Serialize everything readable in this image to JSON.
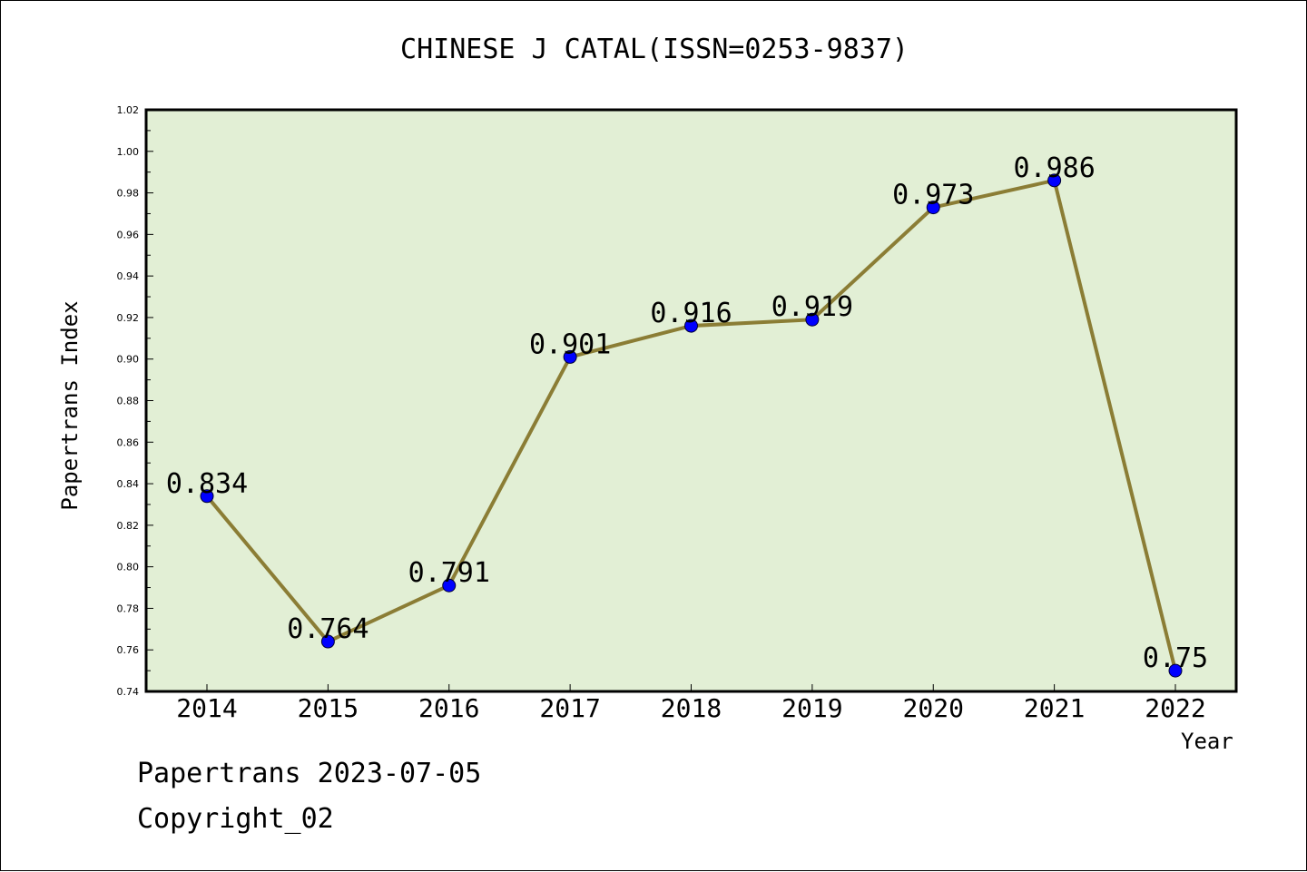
{
  "chart_data": {
    "type": "line",
    "title": "CHINESE J CATAL(ISSN=0253-9837)",
    "xlabel": "Year",
    "ylabel": "Papertrans Index",
    "categories": [
      "2014",
      "2015",
      "2016",
      "2017",
      "2018",
      "2019",
      "2020",
      "2021",
      "2022"
    ],
    "values": [
      0.834,
      0.764,
      0.791,
      0.901,
      0.916,
      0.919,
      0.973,
      0.986,
      0.75
    ],
    "data_labels": [
      "0.834",
      "0.764",
      "0.791",
      "0.901",
      "0.916",
      "0.919",
      "0.973",
      "0.986",
      "0.75"
    ],
    "ylim": [
      0.74,
      1.02
    ],
    "yticks": [
      "0.74",
      "0.76",
      "0.78",
      "0.80",
      "0.82",
      "0.84",
      "0.86",
      "0.88",
      "0.90",
      "0.92",
      "0.94",
      "0.96",
      "0.98",
      "1.00",
      "1.02"
    ],
    "grid": false,
    "colors": {
      "plot_background": "#e2efd5",
      "line": "#8b7d35",
      "marker": "#0000ff"
    }
  },
  "footer": {
    "date_line": "Papertrans 2023-07-05",
    "copyright": "Copyright_02"
  }
}
